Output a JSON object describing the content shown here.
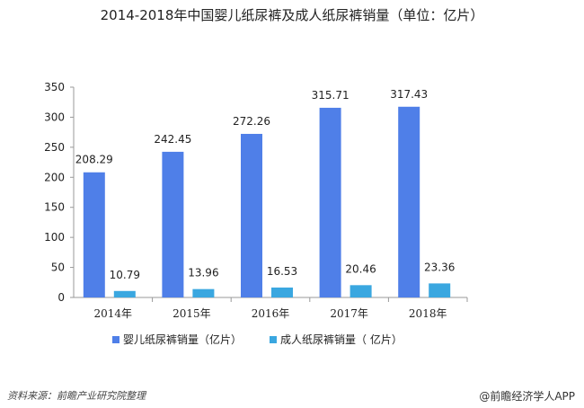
{
  "chart_data": {
    "type": "bar",
    "title": "2014-2018年中国婴儿纸尿裤及成人纸尿裤销量（单位：亿片）",
    "categories": [
      "2014年",
      "2015年",
      "2016年",
      "2017年",
      "2018年"
    ],
    "series": [
      {
        "name": "婴儿纸尿裤销量（亿片）",
        "values": [
          208.29,
          242.45,
          272.26,
          315.71,
          317.43
        ],
        "color": "#4f7fe8"
      },
      {
        "name": "成人纸尿裤销量（ 亿片）",
        "values": [
          10.79,
          13.96,
          16.53,
          20.46,
          23.36
        ],
        "color": "#3aa7e0"
      }
    ],
    "ylim": [
      0,
      350
    ],
    "yticks": [
      0,
      50,
      100,
      150,
      200,
      250,
      300,
      350
    ],
    "grid": false,
    "legend": "bottom"
  },
  "footer": {
    "source": "资料来源：前瞻产业研究院整理",
    "brand": "@前瞻经济学人APP"
  }
}
